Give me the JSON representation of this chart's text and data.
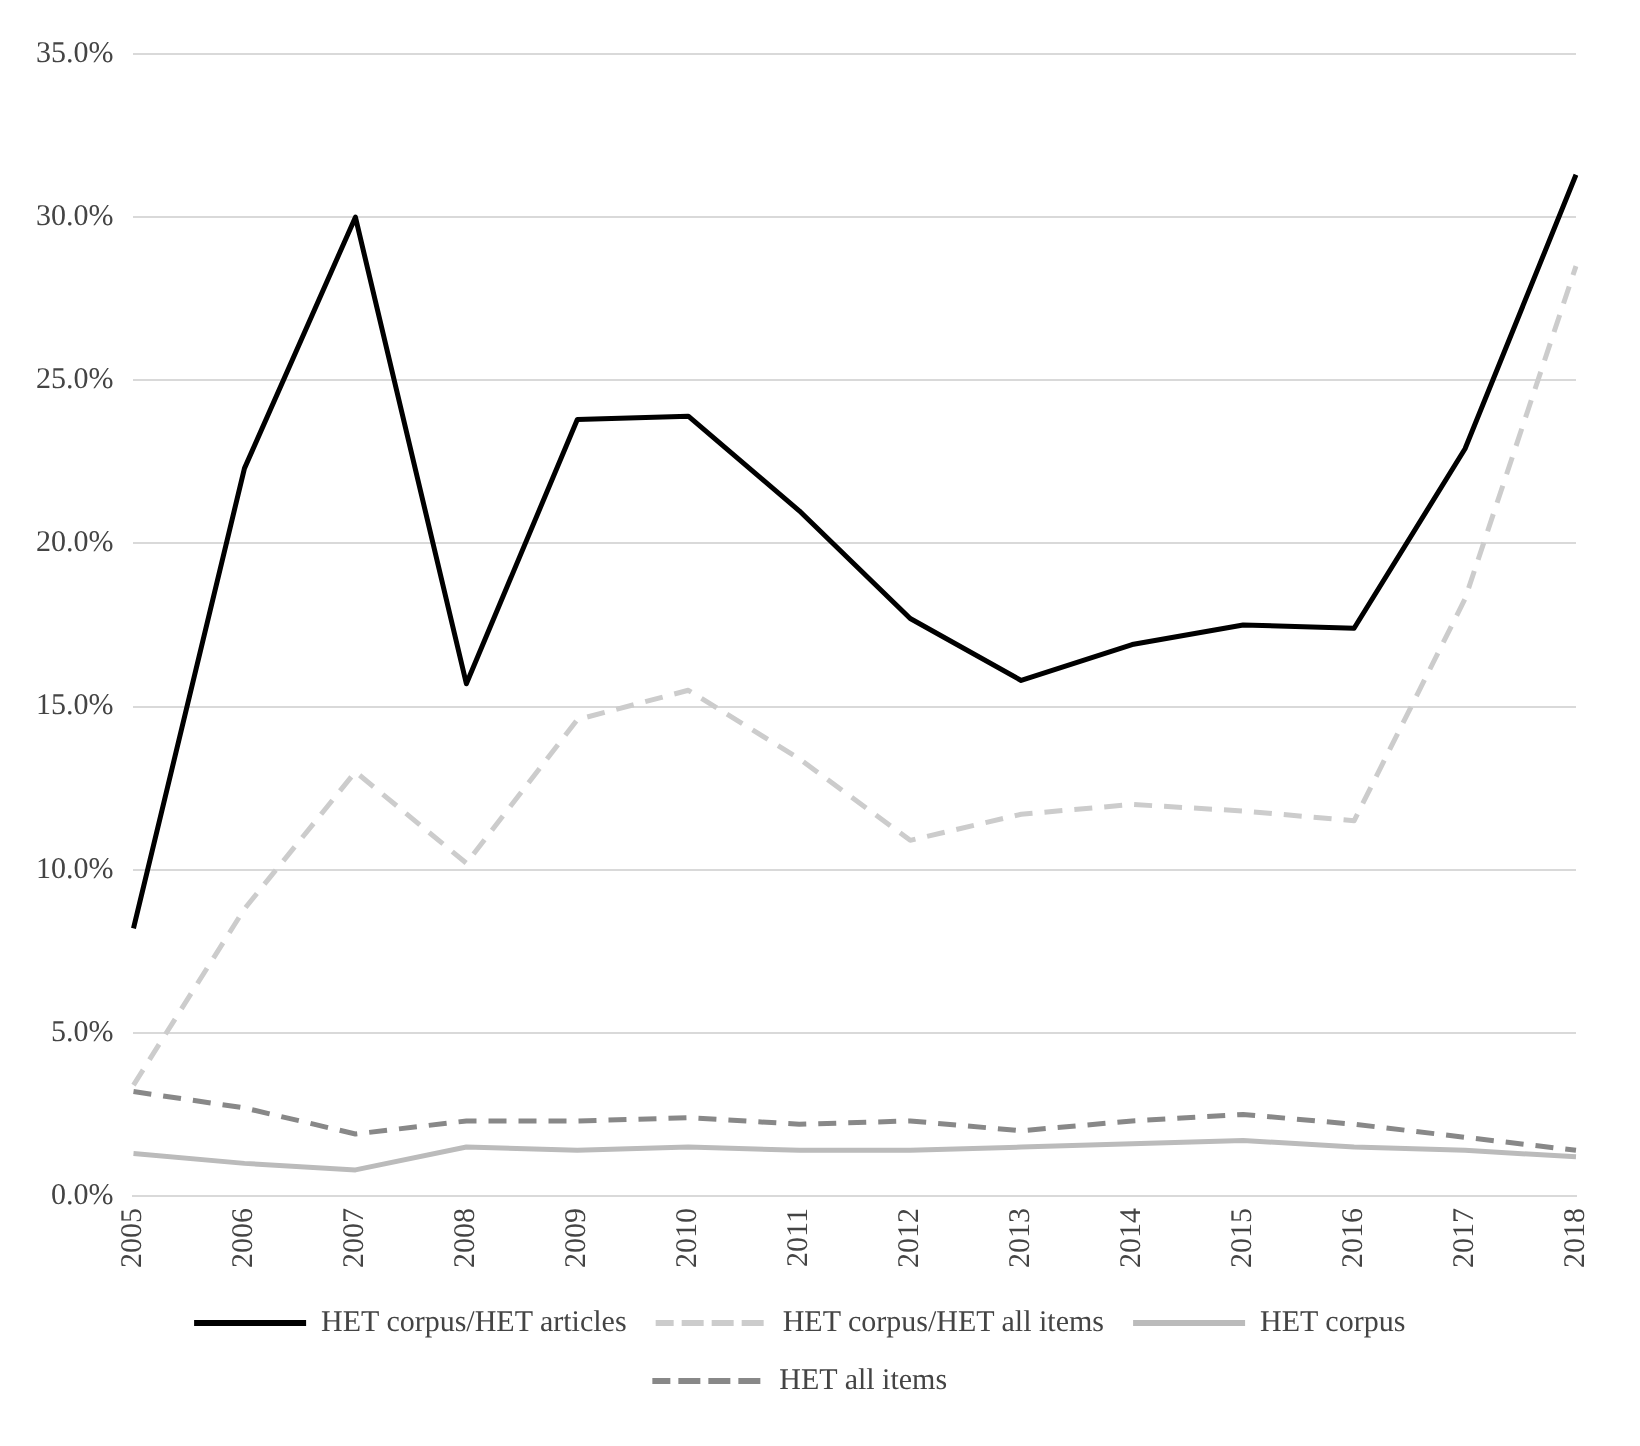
{
  "chart_data": {
    "type": "line",
    "categories": [
      "2005",
      "2006",
      "2007",
      "2008",
      "2009",
      "2010",
      "2011",
      "2012",
      "2013",
      "2014",
      "2015",
      "2016",
      "2017",
      "2018"
    ],
    "series": [
      {
        "name": "HET corpus/HET articles",
        "color": "#000000",
        "line_style": "solid",
        "values": [
          8.2,
          22.3,
          30.0,
          15.7,
          23.8,
          23.9,
          21.0,
          17.7,
          15.8,
          16.9,
          17.5,
          17.4,
          22.9,
          31.3
        ]
      },
      {
        "name": "HET corpus/HET all items",
        "color": "#cccccc",
        "line_style": "dashed",
        "values": [
          3.4,
          8.8,
          13.0,
          10.2,
          14.6,
          15.5,
          13.4,
          10.9,
          11.7,
          12.0,
          11.8,
          11.5,
          18.3,
          28.5
        ]
      },
      {
        "name": "HET corpus",
        "color": "#bbbbbb",
        "line_style": "solid",
        "values": [
          1.3,
          1.0,
          0.8,
          1.5,
          1.4,
          1.5,
          1.4,
          1.4,
          1.5,
          1.6,
          1.7,
          1.5,
          1.4,
          1.2
        ]
      },
      {
        "name": "HET all items",
        "color": "#888888",
        "line_style": "dashed",
        "values": [
          3.2,
          2.7,
          1.9,
          2.3,
          2.3,
          2.4,
          2.2,
          2.3,
          2.0,
          2.3,
          2.5,
          2.2,
          1.8,
          1.4
        ]
      }
    ],
    "ylim": [
      0,
      35
    ],
    "yticks": [
      {
        "value": 0,
        "label": "0.0%"
      },
      {
        "value": 5,
        "label": "5.0%"
      },
      {
        "value": 10,
        "label": "10.0%"
      },
      {
        "value": 15,
        "label": "15.0%"
      },
      {
        "value": 20,
        "label": "20.0%"
      },
      {
        "value": 25,
        "label": "25.0%"
      },
      {
        "value": 30,
        "label": "30.0%"
      },
      {
        "value": 35,
        "label": "35.0%"
      }
    ],
    "grid": "y",
    "legend": "bottom",
    "marker": "none"
  }
}
